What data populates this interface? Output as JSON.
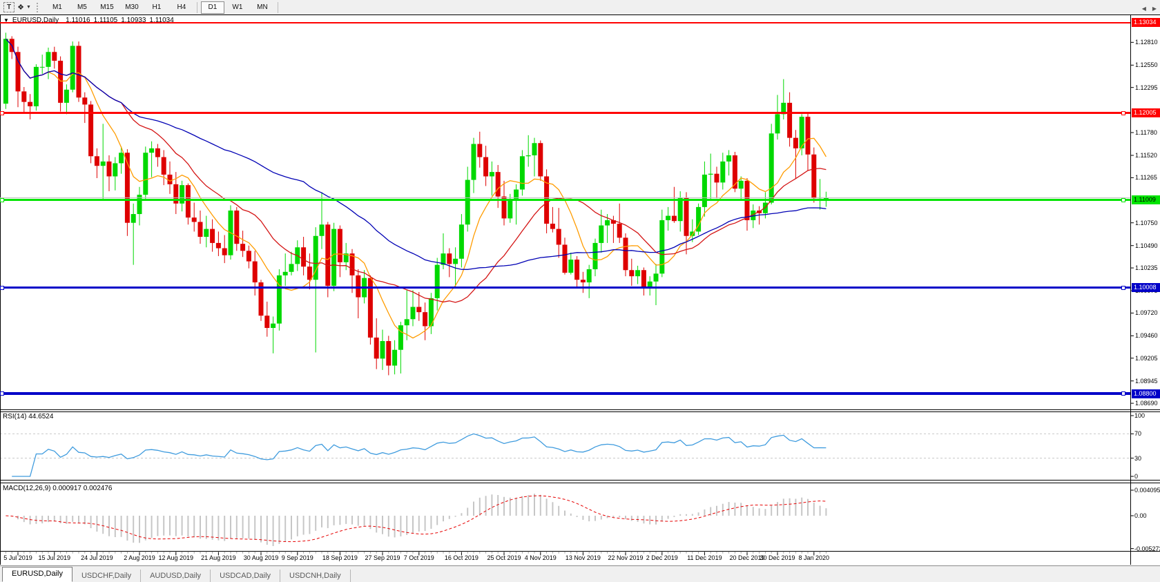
{
  "toolbar": {
    "tools": {
      "text_tool_glyph": "T",
      "objects_tool_glyph": "❖",
      "dropdown_glyph": "▼"
    },
    "timeframes": [
      {
        "label": "M1",
        "active": false
      },
      {
        "label": "M5",
        "active": false
      },
      {
        "label": "M15",
        "active": false
      },
      {
        "label": "M30",
        "active": false
      },
      {
        "label": "H1",
        "active": false
      },
      {
        "label": "H4",
        "active": false
      },
      {
        "label": "D1",
        "active": true
      },
      {
        "label": "W1",
        "active": false
      },
      {
        "label": "MN",
        "active": false
      }
    ]
  },
  "header": {
    "collapse_icon": "▼",
    "symbol": "EURUSD,Daily",
    "open": "1.11016",
    "high": "1.11105",
    "low": "1.10933",
    "close": "1.11034"
  },
  "chart_data": {
    "type": "candlestick",
    "symbol": "EURUSD",
    "period": "Daily",
    "colors": {
      "bull": "#00D800",
      "bear": "#DE0000",
      "background": "#FFFFFF",
      "border": "#000000"
    },
    "price_axis": {
      "min": 1.0862,
      "max": 1.1312,
      "ticks": [
        "1.12810",
        "1.12550",
        "1.12295",
        "1.11780",
        "1.11520",
        "1.11265",
        "1.10750",
        "1.10490",
        "1.10235",
        "1.09975",
        "1.09720",
        "1.09460",
        "1.09205",
        "1.08945",
        "1.08690"
      ]
    },
    "hlines": [
      {
        "price": 1.13034,
        "label": "1.13034",
        "color": "#FF0000",
        "text": "#FFFFFF",
        "thickness": 2,
        "handles": false
      },
      {
        "price": 1.12005,
        "label": "1.12005",
        "color": "#FF0000",
        "text": "#FFFFFF",
        "thickness": 3,
        "handles": true
      },
      {
        "price": 1.11034,
        "label": null,
        "color": "#BDBDBD",
        "text": null,
        "thickness": 1,
        "handles": false
      },
      {
        "price": 1.11009,
        "label": "1.11009",
        "color": "#00E400",
        "text": "#000000",
        "thickness": 3,
        "handles": true
      },
      {
        "price": 1.10008,
        "label": "1.10008",
        "color": "#0000C8",
        "text": "#FFFFFF",
        "thickness": 3,
        "handles": true
      },
      {
        "price": 1.088,
        "label": "1.08800",
        "color": "#0000C8",
        "text": "#FFFFFF",
        "thickness": 4,
        "handles": true
      }
    ],
    "x_ticks": [
      {
        "i": 2,
        "label": "5 Jul 2019"
      },
      {
        "i": 8,
        "label": "15 Jul 2019"
      },
      {
        "i": 15,
        "label": "24 Jul 2019"
      },
      {
        "i": 22,
        "label": "2 Aug 2019"
      },
      {
        "i": 28,
        "label": "12 Aug 2019"
      },
      {
        "i": 35,
        "label": "21 Aug 2019"
      },
      {
        "i": 42,
        "label": "30 Aug 2019"
      },
      {
        "i": 48,
        "label": "9 Sep 2019"
      },
      {
        "i": 55,
        "label": "18 Sep 2019"
      },
      {
        "i": 62,
        "label": "27 Sep 2019"
      },
      {
        "i": 68,
        "label": "7 Oct 2019"
      },
      {
        "i": 75,
        "label": "16 Oct 2019"
      },
      {
        "i": 82,
        "label": "25 Oct 2019"
      },
      {
        "i": 88,
        "label": "4 Nov 2019"
      },
      {
        "i": 95,
        "label": "13 Nov 2019"
      },
      {
        "i": 102,
        "label": "22 Nov 2019"
      },
      {
        "i": 108,
        "label": "2 Dec 2019"
      },
      {
        "i": 115,
        "label": "11 Dec 2019"
      },
      {
        "i": 122,
        "label": "20 Dec 2019"
      },
      {
        "i": 127,
        "label": "30 Dec 2019"
      },
      {
        "i": 133,
        "label": "8 Jan 2020"
      }
    ],
    "candles": [
      [
        1.1211,
        1.1292,
        1.1205,
        1.1285
      ],
      [
        1.1285,
        1.1288,
        1.1262,
        1.127
      ],
      [
        1.127,
        1.1276,
        1.1207,
        1.1225
      ],
      [
        1.1225,
        1.123,
        1.12,
        1.1213
      ],
      [
        1.1213,
        1.1222,
        1.1193,
        1.1208
      ],
      [
        1.1208,
        1.1256,
        1.1203,
        1.1253
      ],
      [
        1.1253,
        1.1267,
        1.1245,
        1.1253
      ],
      [
        1.1253,
        1.1275,
        1.1239,
        1.127
      ],
      [
        1.127,
        1.1276,
        1.1251,
        1.126
      ],
      [
        1.126,
        1.1265,
        1.1202,
        1.1212
      ],
      [
        1.1212,
        1.1233,
        1.1199,
        1.1227
      ],
      [
        1.1227,
        1.1282,
        1.1224,
        1.1277
      ],
      [
        1.1277,
        1.1282,
        1.1213,
        1.1218
      ],
      [
        1.1218,
        1.1224,
        1.1189,
        1.121
      ],
      [
        1.121,
        1.1214,
        1.1143,
        1.1151
      ],
      [
        1.1151,
        1.116,
        1.1126,
        1.114
      ],
      [
        1.114,
        1.1188,
        1.1101,
        1.1145
      ],
      [
        1.1145,
        1.1152,
        1.1111,
        1.1128
      ],
      [
        1.1128,
        1.115,
        1.1112,
        1.1143
      ],
      [
        1.1143,
        1.1162,
        1.1131,
        1.1155
      ],
      [
        1.1155,
        1.1159,
        1.106,
        1.1075
      ],
      [
        1.1075,
        1.1097,
        1.1027,
        1.1085
      ],
      [
        1.1085,
        1.1116,
        1.1072,
        1.1107
      ],
      [
        1.1107,
        1.1162,
        1.1101,
        1.1155
      ],
      [
        1.1155,
        1.1168,
        1.1127,
        1.116
      ],
      [
        1.116,
        1.1165,
        1.1139,
        1.115
      ],
      [
        1.115,
        1.1158,
        1.1118,
        1.113
      ],
      [
        1.113,
        1.1145,
        1.1108,
        1.1119
      ],
      [
        1.1119,
        1.1133,
        1.1085,
        1.1097
      ],
      [
        1.1097,
        1.1123,
        1.1088,
        1.1118
      ],
      [
        1.1118,
        1.112,
        1.1073,
        1.1081
      ],
      [
        1.1081,
        1.1098,
        1.1065,
        1.1076
      ],
      [
        1.1076,
        1.1089,
        1.1051,
        1.1059
      ],
      [
        1.1059,
        1.1083,
        1.1047,
        1.1068
      ],
      [
        1.1068,
        1.1079,
        1.1042,
        1.1052
      ],
      [
        1.1052,
        1.1065,
        1.1037,
        1.1046
      ],
      [
        1.1046,
        1.1061,
        1.1029,
        1.1038
      ],
      [
        1.1038,
        1.1095,
        1.1033,
        1.1089
      ],
      [
        1.1089,
        1.1093,
        1.1043,
        1.1051
      ],
      [
        1.1051,
        1.1066,
        1.1036,
        1.1043
      ],
      [
        1.1043,
        1.1049,
        1.1023,
        1.1031
      ],
      [
        1.1031,
        1.1043,
        1.0992,
        1.1007
      ],
      [
        1.1007,
        1.101,
        1.0963,
        1.0969
      ],
      [
        1.0969,
        1.0985,
        1.0945,
        1.0955
      ],
      [
        1.0955,
        1.0968,
        1.0926,
        1.096
      ],
      [
        1.096,
        1.1022,
        1.0952,
        1.1015
      ],
      [
        1.1015,
        1.104,
        1.1003,
        1.1019
      ],
      [
        1.1019,
        1.1042,
        1.1015,
        1.1028
      ],
      [
        1.1028,
        1.1055,
        1.102,
        1.1047
      ],
      [
        1.1047,
        1.1059,
        1.1015,
        1.1025
      ],
      [
        1.1025,
        1.104,
        1.0999,
        1.101
      ],
      [
        1.101,
        1.107,
        1.0927,
        1.106
      ],
      [
        1.106,
        1.111,
        1.1045,
        1.1073
      ],
      [
        1.1073,
        1.1076,
        1.099,
        1.1003
      ],
      [
        1.1003,
        1.1075,
        1.0997,
        1.1068
      ],
      [
        1.1068,
        1.1072,
        1.1013,
        1.103
      ],
      [
        1.103,
        1.1052,
        1.1021,
        1.104
      ],
      [
        1.104,
        1.1045,
        1.0995,
        1.1015
      ],
      [
        1.1015,
        1.1022,
        1.0966,
        1.099
      ],
      [
        1.099,
        1.1021,
        1.0983,
        1.1012
      ],
      [
        1.1012,
        1.1015,
        1.0936,
        1.0944
      ],
      [
        1.0944,
        1.0966,
        1.0908,
        1.092
      ],
      [
        1.092,
        1.0953,
        1.0907,
        1.094
      ],
      [
        1.094,
        1.0946,
        1.0901,
        1.0912
      ],
      [
        1.0912,
        1.0941,
        1.0902,
        1.093
      ],
      [
        1.093,
        1.0962,
        1.0903,
        1.0958
      ],
      [
        1.0958,
        1.0998,
        1.0941,
        1.0965
      ],
      [
        1.0965,
        1.0998,
        1.0957,
        1.0979
      ],
      [
        1.0979,
        1.0996,
        1.0963,
        1.0973
      ],
      [
        1.0973,
        1.0984,
        1.0941,
        1.0957
      ],
      [
        1.0957,
        1.0995,
        1.0948,
        1.0989
      ],
      [
        1.0989,
        1.1035,
        1.0975,
        1.1027
      ],
      [
        1.1027,
        1.1063,
        1.1022,
        1.104
      ],
      [
        1.104,
        1.1046,
        1.1013,
        1.1028
      ],
      [
        1.1028,
        1.1047,
        1.1001,
        1.1034
      ],
      [
        1.1034,
        1.1085,
        1.1024,
        1.1073
      ],
      [
        1.1073,
        1.1139,
        1.1065,
        1.1124
      ],
      [
        1.1124,
        1.1172,
        1.1109,
        1.1165
      ],
      [
        1.1165,
        1.1179,
        1.1138,
        1.115
      ],
      [
        1.115,
        1.1163,
        1.1117,
        1.1128
      ],
      [
        1.1128,
        1.1145,
        1.1106,
        1.1133
      ],
      [
        1.1133,
        1.1141,
        1.1092,
        1.1105
      ],
      [
        1.1105,
        1.1123,
        1.1072,
        1.108
      ],
      [
        1.108,
        1.1108,
        1.1075,
        1.11
      ],
      [
        1.11,
        1.1119,
        1.1073,
        1.1113
      ],
      [
        1.1113,
        1.1158,
        1.1106,
        1.1151
      ],
      [
        1.1151,
        1.1175,
        1.1139,
        1.1152
      ],
      [
        1.1152,
        1.1172,
        1.1128,
        1.1166
      ],
      [
        1.1166,
        1.1169,
        1.1123,
        1.1128
      ],
      [
        1.1128,
        1.1136,
        1.1063,
        1.1074
      ],
      [
        1.1074,
        1.1093,
        1.1064,
        1.1068
      ],
      [
        1.1068,
        1.1092,
        1.1035,
        1.105
      ],
      [
        1.105,
        1.1058,
        1.1016,
        1.1018
      ],
      [
        1.1018,
        1.1041,
        1.1016,
        1.1033
      ],
      [
        1.1033,
        1.1037,
        1.1002,
        1.101
      ],
      [
        1.101,
        1.1019,
        1.0995,
        1.1007
      ],
      [
        1.1007,
        1.1027,
        1.0989,
        1.1022
      ],
      [
        1.1022,
        1.1057,
        1.1014,
        1.1052
      ],
      [
        1.1052,
        1.109,
        1.1041,
        1.1072
      ],
      [
        1.1072,
        1.1085,
        1.1052,
        1.1078
      ],
      [
        1.1078,
        1.1083,
        1.1052,
        1.1074
      ],
      [
        1.1074,
        1.1097,
        1.1052,
        1.1058
      ],
      [
        1.1058,
        1.1063,
        1.1014,
        1.1021
      ],
      [
        1.1021,
        1.1034,
        1.1003,
        1.1014
      ],
      [
        1.1014,
        1.1026,
        1.1005,
        1.1021
      ],
      [
        1.1021,
        1.1024,
        1.0992,
        1.1001
      ],
      [
        1.1001,
        1.1014,
        1.0992,
        1.1008
      ],
      [
        1.1008,
        1.1028,
        1.0981,
        1.1017
      ],
      [
        1.1017,
        1.109,
        1.1013,
        1.1078
      ],
      [
        1.1078,
        1.1093,
        1.1066,
        1.1083
      ],
      [
        1.1083,
        1.1116,
        1.1075,
        1.1077
      ],
      [
        1.1077,
        1.1111,
        1.1065,
        1.1104
      ],
      [
        1.1104,
        1.111,
        1.1039,
        1.106
      ],
      [
        1.106,
        1.1079,
        1.1053,
        1.1065
      ],
      [
        1.1065,
        1.1097,
        1.1061,
        1.1093
      ],
      [
        1.1093,
        1.1145,
        1.1082,
        1.113
      ],
      [
        1.113,
        1.1154,
        1.1102,
        1.1131
      ],
      [
        1.1131,
        1.1139,
        1.1103,
        1.1121
      ],
      [
        1.1121,
        1.1155,
        1.1113,
        1.1145
      ],
      [
        1.1145,
        1.1158,
        1.1129,
        1.1152
      ],
      [
        1.1152,
        1.1156,
        1.111,
        1.1114
      ],
      [
        1.1114,
        1.1128,
        1.1102,
        1.1123
      ],
      [
        1.1123,
        1.1126,
        1.1066,
        1.1078
      ],
      [
        1.1078,
        1.1096,
        1.1069,
        1.1089
      ],
      [
        1.1089,
        1.1094,
        1.1073,
        1.1086
      ],
      [
        1.1086,
        1.111,
        1.108,
        1.1098
      ],
      [
        1.1098,
        1.1188,
        1.1096,
        1.1177
      ],
      [
        1.1177,
        1.1221,
        1.117,
        1.1199
      ],
      [
        1.1199,
        1.1239,
        1.1193,
        1.1212
      ],
      [
        1.1212,
        1.1224,
        1.1162,
        1.1172
      ],
      [
        1.1172,
        1.1181,
        1.1125,
        1.116
      ],
      [
        1.116,
        1.1199,
        1.1152,
        1.1196
      ],
      [
        1.1196,
        1.12,
        1.1135,
        1.1153
      ],
      [
        1.1153,
        1.1161,
        1.1098,
        1.1103
      ],
      [
        1.1103,
        1.1125,
        1.109,
        1.1104
      ],
      [
        1.11016,
        1.11105,
        1.10933,
        1.11034
      ]
    ],
    "moving_averages": [
      {
        "period": 8,
        "color": "#FF9C00"
      },
      {
        "period": 20,
        "color": "#D41414"
      },
      {
        "period": 50,
        "color": "#0000B4"
      }
    ],
    "indicators": {
      "rsi": {
        "label": "RSI(14) 44.6524",
        "period": 14,
        "value": "44.6524",
        "levels": [
          70,
          30
        ],
        "axis": [
          {
            "v": 100,
            "label": "100"
          },
          {
            "v": 70,
            "label": "70"
          },
          {
            "v": 30,
            "label": "30"
          },
          {
            "v": 0,
            "label": "0"
          }
        ],
        "color": "#3E9BDE",
        "level_color": "#C8C8C8"
      },
      "macd": {
        "label": "MACD(12,26,9) 0.000917 0.002476",
        "fast": 12,
        "slow": 26,
        "signal": 9,
        "macd_value": "0.000917",
        "signal_value": "0.002476",
        "axis_top": "0.004095",
        "axis_zero": "0.00",
        "axis_bottom": "-0.005273",
        "hist_color": "#C6C6C6",
        "signal_color": "#E60000"
      }
    }
  },
  "tabs": {
    "items": [
      {
        "label": "EURUSD,Daily",
        "active": true
      },
      {
        "label": "USDCHF,Daily",
        "active": false
      },
      {
        "label": "AUDUSD,Daily",
        "active": false
      },
      {
        "label": "USDCAD,Daily",
        "active": false
      },
      {
        "label": "USDCNH,Daily",
        "active": false
      }
    ],
    "scroll_left": "◀",
    "scroll_right": "▶"
  }
}
